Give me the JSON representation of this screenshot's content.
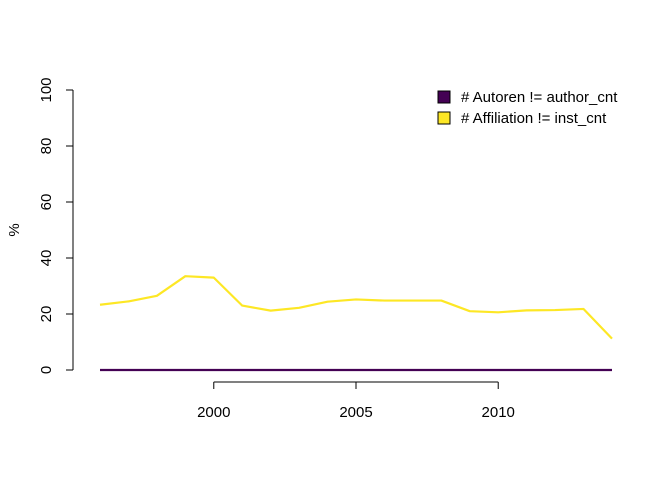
{
  "chart_data": {
    "type": "line",
    "title": "",
    "xlabel": "",
    "ylabel": "%",
    "xlim": [
      1996,
      2014
    ],
    "ylim": [
      0,
      100
    ],
    "x_ticks": [
      2000,
      2005,
      2010
    ],
    "x_tick_labels": [
      "2000",
      "2005",
      "2010"
    ],
    "y_ticks": [
      0,
      20,
      40,
      60,
      80,
      100
    ],
    "y_tick_labels": [
      "0",
      "20",
      "40",
      "60",
      "80",
      "100"
    ],
    "grid": false,
    "legend_position": "top-right",
    "x": [
      1996,
      1997,
      1998,
      1999,
      2000,
      2001,
      2002,
      2003,
      2004,
      2005,
      2006,
      2007,
      2008,
      2009,
      2010,
      2011,
      2012,
      2013,
      2014
    ],
    "series": [
      {
        "name": "# Autoren != author_cnt",
        "color": "#440154",
        "values": [
          0,
          0,
          0,
          0,
          0,
          0,
          0,
          0,
          0,
          0,
          0,
          0,
          0,
          0,
          0,
          0,
          0,
          0,
          0
        ]
      },
      {
        "name": "# Affiliation != inst_cnt",
        "color": "#FDE725",
        "values": [
          23.3,
          24.5,
          26.5,
          33.5,
          33.0,
          23.0,
          21.2,
          22.2,
          24.4,
          25.2,
          24.8,
          24.8,
          24.8,
          21.0,
          20.6,
          21.3,
          21.4,
          21.8,
          11.2
        ]
      }
    ]
  }
}
